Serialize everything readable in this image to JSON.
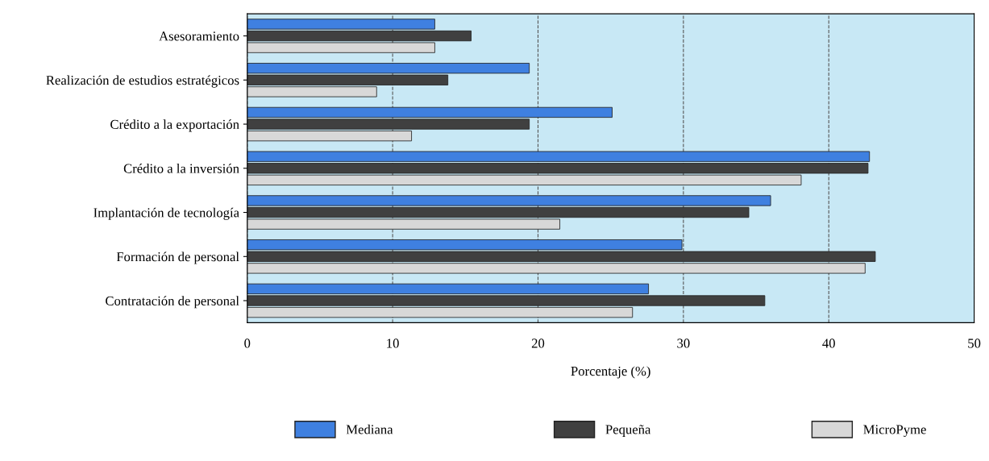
{
  "chart_data": {
    "type": "bar",
    "orientation": "horizontal",
    "xlabel": "Porcentaje (%)",
    "categories": [
      "Asesoramiento",
      "Realización de estudios estratégicos",
      "Crédito a la exportación",
      "Crédito a la inversión",
      "Implantación de tecnología",
      "Formación de personal",
      "Contratación de personal"
    ],
    "series": [
      {
        "name": "Mediana",
        "color": "#3f80e0",
        "values": [
          12.9,
          19.4,
          25.1,
          42.8,
          36.0,
          29.9,
          27.6
        ]
      },
      {
        "name": "Pequeña",
        "color": "#404040",
        "values": [
          15.4,
          13.8,
          19.4,
          42.7,
          34.5,
          43.2,
          35.6
        ]
      },
      {
        "name": "MicroPyme",
        "color": "#d8d8d8",
        "values": [
          12.9,
          8.9,
          11.3,
          38.1,
          21.5,
          42.5,
          26.5
        ]
      }
    ],
    "xlim": [
      0,
      50
    ],
    "xticks": [
      0,
      10,
      20,
      30,
      40,
      50
    ],
    "grid": "x",
    "legend": "bottom"
  }
}
